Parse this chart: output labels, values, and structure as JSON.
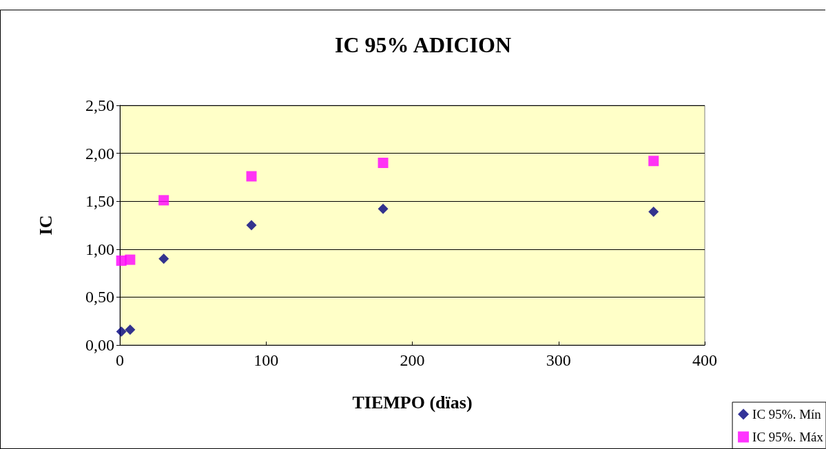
{
  "chart_data": {
    "type": "scatter",
    "title": "IC 95% ADICION",
    "xlabel": "TIEMPO (dïas)",
    "ylabel": "IC",
    "x": [
      1,
      7,
      30,
      90,
      180,
      365
    ],
    "series": [
      {
        "name": "IC 95%. Mín",
        "color": "#000080",
        "marker": "diamond",
        "values": [
          0.14,
          0.16,
          0.9,
          1.25,
          1.42,
          1.39
        ]
      },
      {
        "name": "IC 95%. Máx",
        "color": "#ff00ff",
        "marker": "square",
        "values": [
          0.88,
          0.89,
          1.51,
          1.76,
          1.9,
          1.92
        ]
      }
    ],
    "xlim": [
      0,
      400
    ],
    "xticks": [
      0,
      100,
      200,
      300,
      400
    ],
    "ylim": [
      0,
      2.5
    ],
    "yticks": [
      {
        "value": 0,
        "label": "0,00"
      },
      {
        "value": 0.5,
        "label": "0,50"
      },
      {
        "value": 1,
        "label": "1,00"
      },
      {
        "value": 1.5,
        "label": "1,50"
      },
      {
        "value": 2,
        "label": "2,00"
      },
      {
        "value": 2.5,
        "label": "2,50"
      }
    ],
    "grid": "y",
    "legend": "bottom right"
  }
}
